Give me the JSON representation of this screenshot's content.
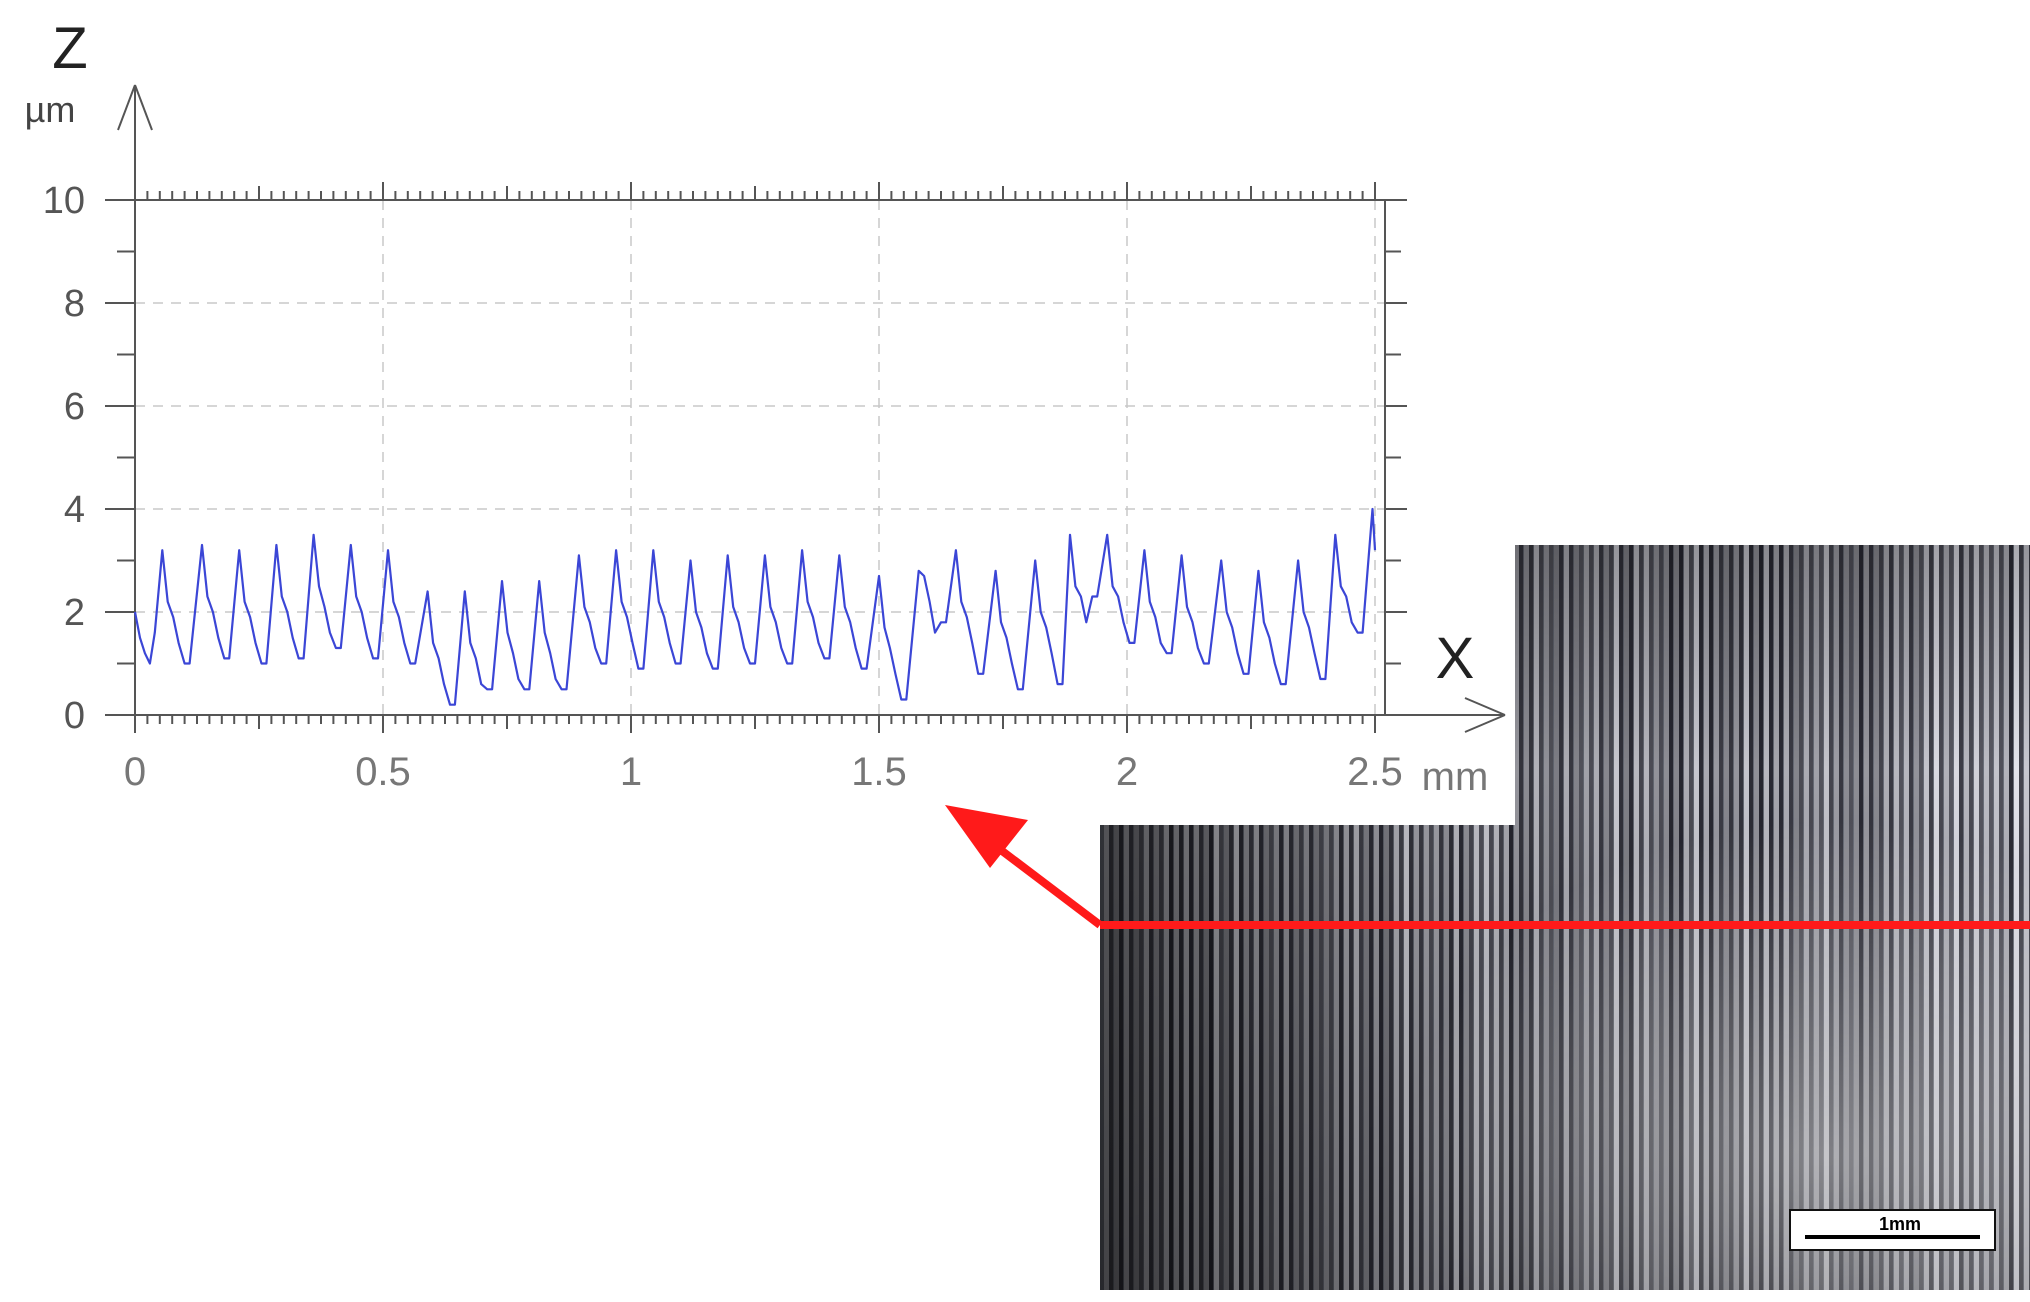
{
  "chart_data": {
    "type": "line",
    "title": "",
    "xlabel": "X",
    "x_unit": "mm",
    "ylabel": "Z",
    "y_unit": "µm",
    "xlim": [
      0,
      2.5
    ],
    "ylim": [
      0,
      10
    ],
    "x_ticks": [
      "0",
      "0.5",
      "1",
      "1.5",
      "2",
      "2.5"
    ],
    "y_ticks": [
      "0",
      "2",
      "4",
      "6",
      "8",
      "10"
    ],
    "grid": true,
    "series": [
      {
        "color": "#3b46d6",
        "x": [
          0.0,
          0.01,
          0.02,
          0.03,
          0.04,
          0.055,
          0.066,
          0.077,
          0.088,
          0.1,
          0.11,
          0.135,
          0.146,
          0.157,
          0.168,
          0.18,
          0.19,
          0.21,
          0.221,
          0.232,
          0.243,
          0.255,
          0.265,
          0.285,
          0.296,
          0.307,
          0.318,
          0.33,
          0.34,
          0.36,
          0.371,
          0.382,
          0.393,
          0.405,
          0.415,
          0.435,
          0.446,
          0.457,
          0.468,
          0.48,
          0.49,
          0.51,
          0.521,
          0.532,
          0.543,
          0.555,
          0.565,
          0.59,
          0.601,
          0.612,
          0.623,
          0.635,
          0.645,
          0.665,
          0.676,
          0.687,
          0.698,
          0.71,
          0.72,
          0.74,
          0.751,
          0.762,
          0.773,
          0.785,
          0.795,
          0.815,
          0.826,
          0.837,
          0.848,
          0.86,
          0.87,
          0.895,
          0.906,
          0.917,
          0.928,
          0.94,
          0.95,
          0.97,
          0.981,
          0.992,
          1.003,
          1.015,
          1.025,
          1.045,
          1.056,
          1.067,
          1.078,
          1.09,
          1.1,
          1.12,
          1.131,
          1.142,
          1.153,
          1.165,
          1.175,
          1.195,
          1.206,
          1.217,
          1.228,
          1.24,
          1.25,
          1.27,
          1.281,
          1.292,
          1.303,
          1.315,
          1.325,
          1.345,
          1.356,
          1.367,
          1.378,
          1.39,
          1.4,
          1.42,
          1.431,
          1.442,
          1.453,
          1.465,
          1.475,
          1.5,
          1.511,
          1.522,
          1.533,
          1.545,
          1.555,
          1.58,
          1.591,
          1.602,
          1.613,
          1.625,
          1.635,
          1.655,
          1.666,
          1.677,
          1.688,
          1.7,
          1.71,
          1.735,
          1.746,
          1.757,
          1.768,
          1.78,
          1.79,
          1.815,
          1.826,
          1.837,
          1.848,
          1.86,
          1.87,
          1.885,
          1.896,
          1.907,
          1.918,
          1.93,
          1.94,
          1.96,
          1.971,
          1.982,
          1.993,
          2.005,
          2.015,
          2.035,
          2.046,
          2.057,
          2.068,
          2.08,
          2.09,
          2.11,
          2.121,
          2.132,
          2.143,
          2.155,
          2.165,
          2.19,
          2.201,
          2.212,
          2.223,
          2.235,
          2.245,
          2.265,
          2.276,
          2.287,
          2.298,
          2.31,
          2.32,
          2.345,
          2.356,
          2.367,
          2.378,
          2.39,
          2.4,
          2.42,
          2.431,
          2.442,
          2.453,
          2.465,
          2.475,
          2.495,
          2.5
        ],
        "y": [
          2.0,
          1.5,
          1.2,
          1.0,
          1.6,
          3.2,
          2.2,
          1.9,
          1.4,
          1.0,
          1.0,
          3.3,
          2.3,
          2.0,
          1.5,
          1.1,
          1.1,
          3.2,
          2.2,
          1.9,
          1.4,
          1.0,
          1.0,
          3.3,
          2.3,
          2.0,
          1.5,
          1.1,
          1.1,
          3.5,
          2.5,
          2.1,
          1.6,
          1.3,
          1.3,
          3.3,
          2.3,
          2.0,
          1.5,
          1.1,
          1.1,
          3.2,
          2.2,
          1.9,
          1.4,
          1.0,
          1.0,
          2.4,
          1.4,
          1.1,
          0.6,
          0.2,
          0.2,
          2.4,
          1.4,
          1.1,
          0.6,
          0.5,
          0.5,
          2.6,
          1.6,
          1.2,
          0.7,
          0.5,
          0.5,
          2.6,
          1.6,
          1.2,
          0.7,
          0.5,
          0.5,
          3.1,
          2.1,
          1.8,
          1.3,
          1.0,
          1.0,
          3.2,
          2.2,
          1.9,
          1.4,
          0.9,
          0.9,
          3.2,
          2.2,
          1.9,
          1.4,
          1.0,
          1.0,
          3.0,
          2.0,
          1.7,
          1.2,
          0.9,
          0.9,
          3.1,
          2.1,
          1.8,
          1.3,
          1.0,
          1.0,
          3.1,
          2.1,
          1.8,
          1.3,
          1.0,
          1.0,
          3.2,
          2.2,
          1.9,
          1.4,
          1.1,
          1.1,
          3.1,
          2.1,
          1.8,
          1.3,
          0.9,
          0.9,
          2.7,
          1.7,
          1.3,
          0.8,
          0.3,
          0.3,
          2.8,
          2.7,
          2.2,
          1.6,
          1.8,
          1.8,
          3.2,
          2.2,
          1.9,
          1.4,
          0.8,
          0.8,
          2.8,
          1.8,
          1.5,
          1.0,
          0.5,
          0.5,
          3.0,
          2.0,
          1.7,
          1.2,
          0.6,
          0.6,
          3.5,
          2.5,
          2.3,
          1.8,
          2.3,
          2.3,
          3.5,
          2.5,
          2.3,
          1.8,
          1.4,
          1.4,
          3.2,
          2.2,
          1.9,
          1.4,
          1.2,
          1.2,
          3.1,
          2.1,
          1.8,
          1.3,
          1.0,
          1.0,
          3.0,
          2.0,
          1.7,
          1.2,
          0.8,
          0.8,
          2.8,
          1.8,
          1.5,
          1.0,
          0.6,
          0.6,
          3.0,
          2.0,
          1.7,
          1.2,
          0.7,
          0.7,
          3.5,
          2.5,
          2.3,
          1.8,
          1.6,
          1.6,
          4.0,
          3.2
        ]
      }
    ]
  },
  "micrograph": {
    "scale_bar_label": "1mm",
    "line_color": "#ff1a1a",
    "arrow_color": "#ff1a1a"
  }
}
